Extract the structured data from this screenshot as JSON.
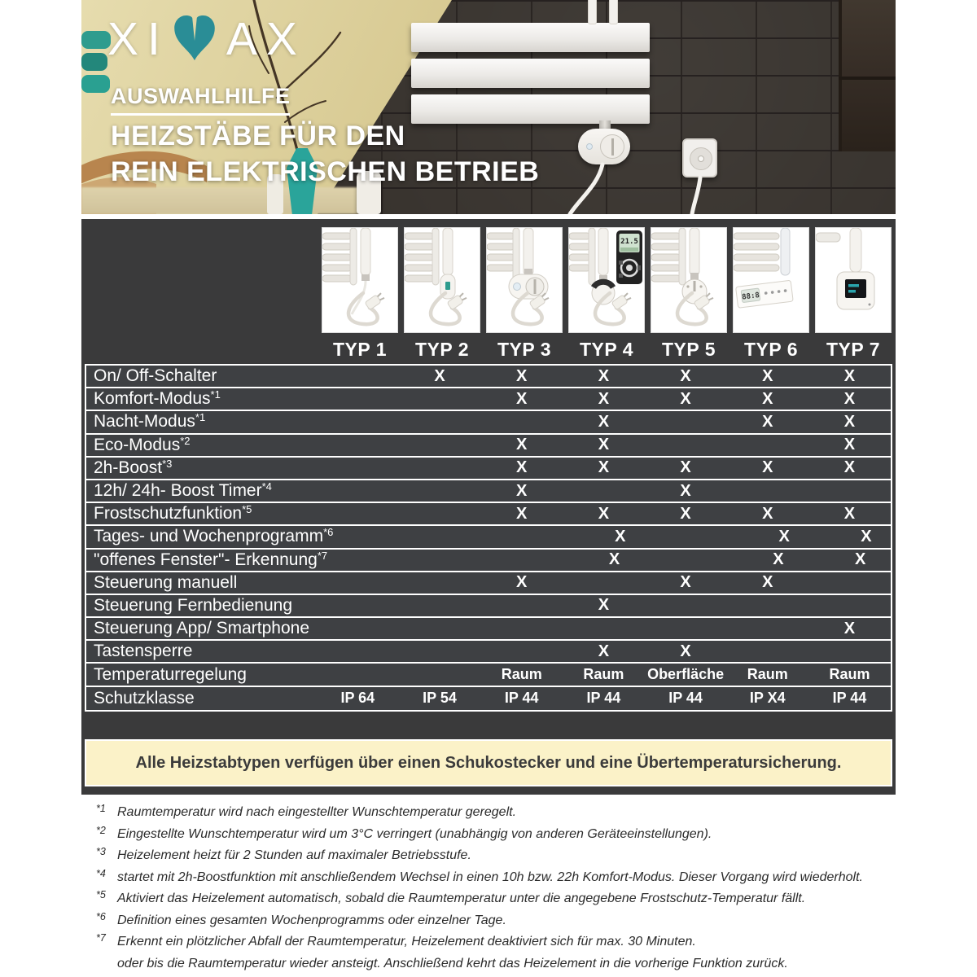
{
  "hero": {
    "logo": {
      "left": "XI",
      "right": "AX",
      "m_color": "#2a8d96"
    },
    "subtitle": "AUSWAHLHILFE",
    "title_line1": "HEIZSTÄBE FÜR DEN",
    "title_line2": "REIN ELEKTRISCHEN BETRIEB"
  },
  "table": {
    "columns": [
      {
        "label": "TYP 1",
        "icon": "heating-rod-basic-icon"
      },
      {
        "label": "TYP 2",
        "icon": "heating-rod-switch-icon"
      },
      {
        "label": "TYP 3",
        "icon": "heating-rod-dial-control-icon"
      },
      {
        "label": "TYP 4",
        "icon": "heating-rod-remote-control-icon"
      },
      {
        "label": "TYP 5",
        "icon": "heating-rod-thermostat-knob-icon"
      },
      {
        "label": "TYP 6",
        "icon": "heating-rod-panel-display-icon"
      },
      {
        "label": "TYP 7",
        "icon": "heating-rod-smart-box-icon"
      }
    ],
    "rows": [
      {
        "label": "On/ Off-Schalter",
        "sup": "",
        "values": [
          "",
          "X",
          "X",
          "X",
          "X",
          "X",
          "X"
        ]
      },
      {
        "label": "Komfort-Modus",
        "sup": "*1",
        "values": [
          "",
          "",
          "X",
          "X",
          "X",
          "X",
          "X"
        ]
      },
      {
        "label": "Nacht-Modus",
        "sup": "*1",
        "values": [
          "",
          "",
          "",
          "X",
          "",
          "X",
          "X"
        ]
      },
      {
        "label": "Eco-Modus",
        "sup": "*2",
        "values": [
          "",
          "",
          "X",
          "X",
          "",
          "",
          "X"
        ]
      },
      {
        "label": "2h-Boost",
        "sup": "*3",
        "values": [
          "",
          "",
          "X",
          "X",
          "X",
          "X",
          "X"
        ]
      },
      {
        "label": "12h/ 24h- Boost Timer",
        "sup": "*4",
        "values": [
          "",
          "",
          "X",
          "",
          "X",
          "",
          ""
        ]
      },
      {
        "label": "Frostschutzfunktion",
        "sup": "*5",
        "values": [
          "",
          "",
          "X",
          "X",
          "X",
          "X",
          "X"
        ]
      },
      {
        "label": "Tages- und Wochenprogramm",
        "sup": "*6",
        "values": [
          "",
          "",
          "",
          "X",
          "",
          "X",
          "X"
        ]
      },
      {
        "label": "\"offenes Fenster\"- Erkennung",
        "sup": "*7",
        "values": [
          "",
          "",
          "",
          "X",
          "",
          "X",
          "X"
        ]
      },
      {
        "label": "Steuerung manuell",
        "sup": "",
        "values": [
          "",
          "",
          "X",
          "",
          "X",
          "X",
          ""
        ]
      },
      {
        "label": "Steuerung Fernbedienung",
        "sup": "",
        "values": [
          "",
          "",
          "",
          "X",
          "",
          "",
          ""
        ]
      },
      {
        "label": "Steuerung App/ Smartphone",
        "sup": "",
        "values": [
          "",
          "",
          "",
          "",
          "",
          "",
          "X"
        ]
      },
      {
        "label": "Tastensperre",
        "sup": "",
        "values": [
          "",
          "",
          "",
          "X",
          "X",
          "",
          ""
        ]
      },
      {
        "label": "Temperaturregelung",
        "sup": "",
        "values": [
          "",
          "",
          "Raum",
          "Raum",
          "Oberfläche",
          "Raum",
          "Raum"
        ]
      },
      {
        "label": "Schutzklasse",
        "sup": "",
        "values": [
          "IP 64",
          "IP 54",
          "IP 44",
          "IP 44",
          "IP 44",
          "IP X4",
          "IP 44"
        ]
      }
    ],
    "banner": "Alle Heizstabtypen verfügen über einen Schukostecker und eine Übertemperatursicherung."
  },
  "footnotes": [
    {
      "marker": "*1",
      "text": "Raumtemperatur wird nach eingestellter Wunschtemperatur geregelt."
    },
    {
      "marker": "*2",
      "text": "Eingestellte Wunschtemperatur wird um 3°C verringert (unabhängig von anderen Geräteeinstellungen)."
    },
    {
      "marker": "*3",
      "text": "Heizelement heizt für 2 Stunden auf maximaler Betriebsstufe."
    },
    {
      "marker": "*4",
      "text": "startet mit 2h-Boostfunktion mit anschließendem Wechsel in einen 10h bzw. 22h Komfort-Modus. Dieser Vorgang wird wiederholt."
    },
    {
      "marker": "*5",
      "text": "Aktiviert das Heizelement automatisch, sobald die Raumtemperatur unter die angegebene Frostschutz-Temperatur fällt."
    },
    {
      "marker": "*6",
      "text": "Definition eines gesamten Wochenprogramms oder einzelner Tage."
    },
    {
      "marker": "*7",
      "text": "Erkennt ein plötzlicher Abfall der Raumtemperatur, Heizelement deaktiviert sich für max. 30 Minuten."
    },
    {
      "marker": "",
      "text": "oder bis die Raumtemperatur wieder ansteigt. Anschließend kehrt das Heizelement in die vorherige Funktion zurück."
    }
  ],
  "colors": {
    "accent_teal": "#2a8d96",
    "board_bg": "#3a3a3b",
    "row_bg": "#3e4043",
    "banner_bg": "#fbf2c8",
    "banner_text": "#3b3b3b"
  }
}
